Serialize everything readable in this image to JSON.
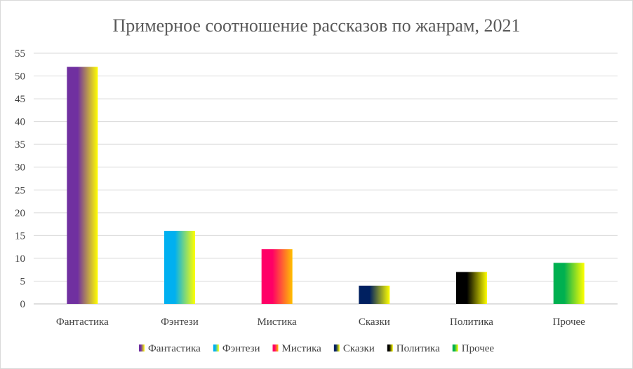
{
  "chart_data": {
    "type": "bar",
    "title": "Примерное соотношение рассказов  по жанрам, 2021",
    "xlabel": "",
    "ylabel": "",
    "ylim": [
      0,
      55
    ],
    "yticks": [
      0,
      5,
      10,
      15,
      20,
      25,
      30,
      35,
      40,
      45,
      50,
      55
    ],
    "grid": true,
    "legend": "bottom",
    "categories": [
      "Фантастика",
      "Фэнтези",
      "Мистика",
      "Сказки",
      "Политика",
      "Прочее"
    ],
    "values": [
      52,
      16,
      12,
      4,
      7,
      9
    ],
    "colors": [
      [
        "#7030a0",
        "#ffff00"
      ],
      [
        "#00b0f0",
        "#ffff00"
      ],
      [
        "#ff0066",
        "#ffc000"
      ],
      [
        "#002060",
        "#ffff00"
      ],
      [
        "#000000",
        "#ffff00"
      ],
      [
        "#00b050",
        "#ffff00"
      ]
    ]
  }
}
